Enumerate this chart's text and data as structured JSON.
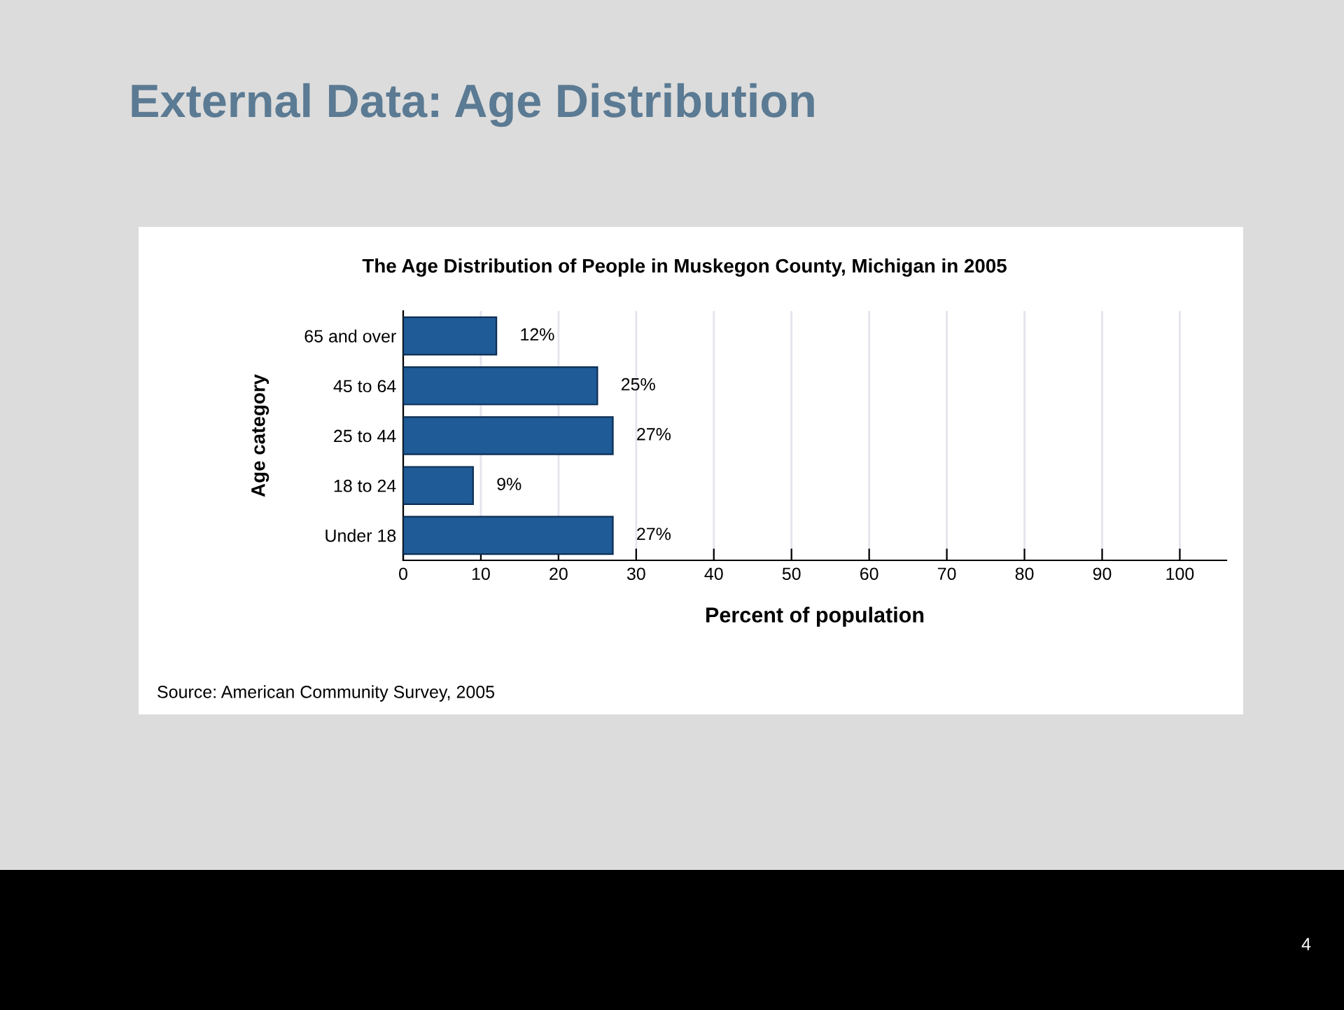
{
  "chart_data": {
    "type": "bar",
    "orientation": "horizontal",
    "title": "External Data: Age Distribution",
    "subtitle": "The Age Distribution of People in Muskegon County, Michigan in 2005",
    "xlabel": "Percent of population",
    "ylabel": "Age category",
    "categories": [
      "65 and over",
      "45 to 64",
      "25 to 44",
      "18 to 24",
      "Under 18"
    ],
    "values": [
      12,
      25,
      27,
      9,
      27
    ],
    "value_labels": [
      "12%",
      "25%",
      "27%",
      "9%",
      "27%"
    ],
    "color": "#1f5b96",
    "xlim": [
      0,
      106
    ],
    "xticks": [
      0,
      10,
      20,
      30,
      40,
      50,
      60,
      70,
      80,
      90,
      100
    ],
    "grid": "x",
    "annotations": [
      "Source: American Community Survey, 2005",
      "4"
    ]
  }
}
